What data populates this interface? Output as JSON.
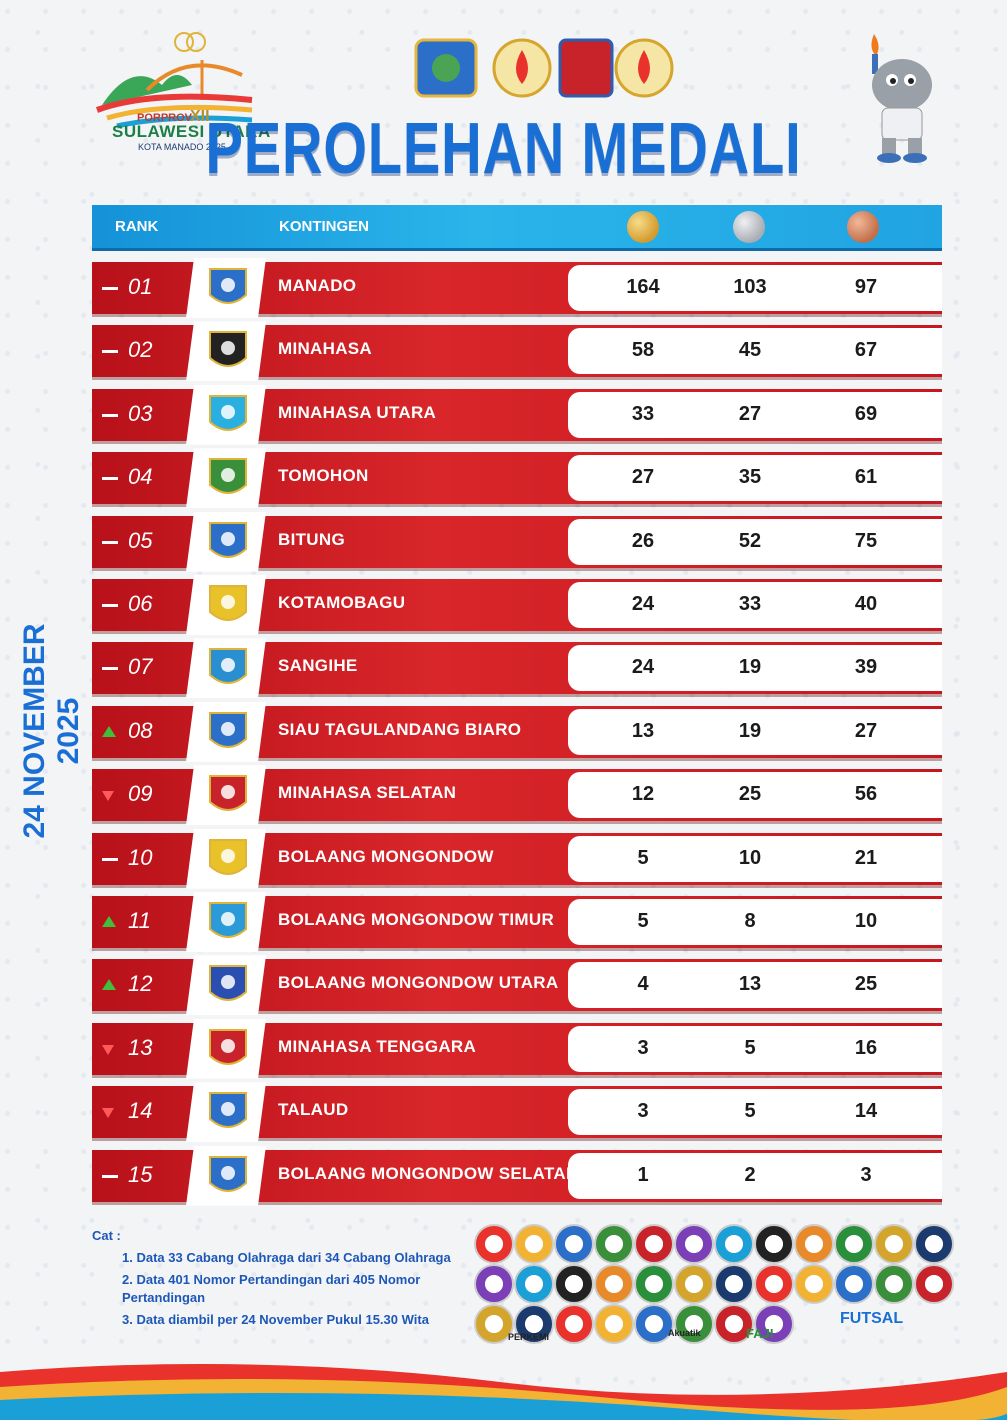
{
  "brand": {
    "line1": "PORPROV",
    "numeral": "XII",
    "line2": "SULAWESI UTARA",
    "line3": "KOTA MANADO 2025"
  },
  "title": "PEROLEHAN MEDALI",
  "date": "24 NOVEMBER 2025",
  "table": {
    "headers": {
      "rank": "RANK",
      "kontingen": "KONTINGEN"
    },
    "medal_icons": [
      "gold-medal-icon",
      "silver-medal-icon",
      "bronze-medal-icon"
    ],
    "rows": [
      {
        "rank": "01",
        "trend": "same",
        "name": "MANADO",
        "gold": "164",
        "silver": "103",
        "bronze": "97"
      },
      {
        "rank": "02",
        "trend": "same",
        "name": "MINAHASA",
        "gold": "58",
        "silver": "45",
        "bronze": "67"
      },
      {
        "rank": "03",
        "trend": "same",
        "name": "MINAHASA UTARA",
        "gold": "33",
        "silver": "27",
        "bronze": "69"
      },
      {
        "rank": "04",
        "trend": "same",
        "name": "TOMOHON",
        "gold": "27",
        "silver": "35",
        "bronze": "61"
      },
      {
        "rank": "05",
        "trend": "same",
        "name": "BITUNG",
        "gold": "26",
        "silver": "52",
        "bronze": "75"
      },
      {
        "rank": "06",
        "trend": "same",
        "name": "KOTAMOBAGU",
        "gold": "24",
        "silver": "33",
        "bronze": "40"
      },
      {
        "rank": "07",
        "trend": "same",
        "name": "SANGIHE",
        "gold": "24",
        "silver": "19",
        "bronze": "39"
      },
      {
        "rank": "08",
        "trend": "up",
        "name": "SIAU TAGULANDANG BIARO",
        "gold": "13",
        "silver": "19",
        "bronze": "27"
      },
      {
        "rank": "09",
        "trend": "down",
        "name": "MINAHASA SELATAN",
        "gold": "12",
        "silver": "25",
        "bronze": "56"
      },
      {
        "rank": "10",
        "trend": "same",
        "name": "BOLAANG MONGONDOW",
        "gold": "5",
        "silver": "10",
        "bronze": "21"
      },
      {
        "rank": "11",
        "trend": "up",
        "name": "BOLAANG MONGONDOW TIMUR",
        "gold": "5",
        "silver": "8",
        "bronze": "10"
      },
      {
        "rank": "12",
        "trend": "up",
        "name": "BOLAANG MONGONDOW UTARA",
        "gold": "4",
        "silver": "13",
        "bronze": "25"
      },
      {
        "rank": "13",
        "trend": "down",
        "name": "MINAHASA TENGGARA",
        "gold": "3",
        "silver": "5",
        "bronze": "16"
      },
      {
        "rank": "14",
        "trend": "down",
        "name": "TALAUD",
        "gold": "3",
        "silver": "5",
        "bronze": "14"
      },
      {
        "rank": "15",
        "trend": "same",
        "name": "BOLAANG MONGONDOW SELATAN",
        "gold": "1",
        "silver": "2",
        "bronze": "3"
      }
    ]
  },
  "notes": {
    "label": "Cat :",
    "items": [
      "1. Data 33 Cabang Olahraga dari 34 Cabang Olahraga",
      "2. Data 401 Nomor Pertandingan dari 405 Nomor Pertandingan",
      "3. Data diambil per 24 November Pukul 15.30 Wita"
    ]
  },
  "sponsors": {
    "labels": [
      "PERKEMI",
      "Akuatik",
      "FAJI",
      "FUTSAL"
    ]
  },
  "colors": {
    "title_blue": "#1a6fd4",
    "row_red": "#c7161e",
    "header_blue": "#1592d8",
    "trend_up": "#3fbf3a",
    "trend_down": "#ff5a5a"
  }
}
